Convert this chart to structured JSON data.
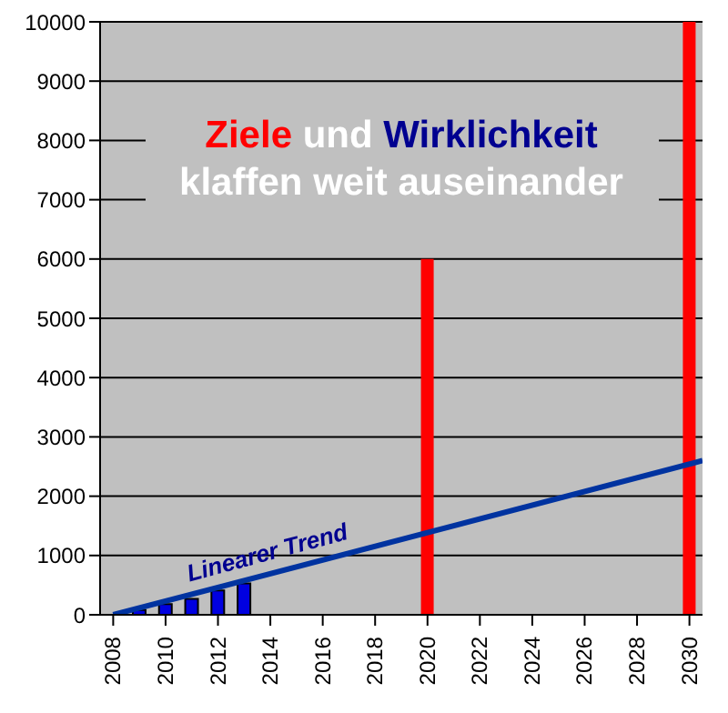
{
  "chart_data": {
    "type": "bar",
    "title": "Ziele und Wirklichkeit klaffen weit auseinander",
    "series": [
      {
        "color": "#0000e0",
        "x": [
          2009,
          2010,
          2011,
          2012,
          2013
        ],
        "values": [
          80,
          180,
          270,
          410,
          530
        ]
      },
      {
        "color": "#ff0000",
        "x": [
          2020,
          2030
        ],
        "values": [
          6000,
          10000
        ]
      },
      {
        "type": "line",
        "color": "#0033a0",
        "x": [
          2008,
          2030.5
        ],
        "values": [
          0,
          2600
        ]
      }
    ],
    "xlim": [
      2007.5,
      2030.5
    ],
    "xticks": [
      2008,
      2010,
      2012,
      2014,
      2016,
      2018,
      2020,
      2022,
      2024,
      2026,
      2028,
      2030
    ],
    "ylim": [
      0,
      10000
    ],
    "yticks": [
      0,
      1000,
      2000,
      3000,
      4000,
      5000,
      6000,
      7000,
      8000,
      9000,
      10000
    ],
    "grid": "y",
    "marker": "none",
    "annotations": [
      "Linearer Trend"
    ]
  }
}
